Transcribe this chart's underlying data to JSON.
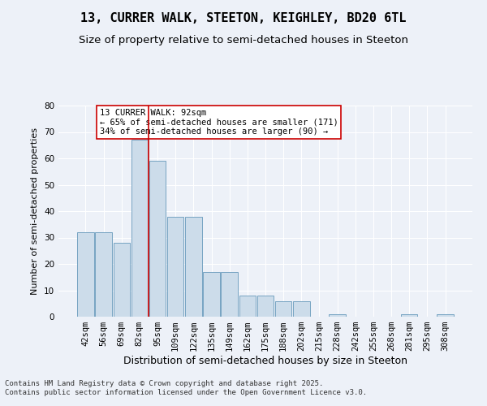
{
  "title_line1": "13, CURRER WALK, STEETON, KEIGHLEY, BD20 6TL",
  "title_line2": "Size of property relative to semi-detached houses in Steeton",
  "xlabel": "Distribution of semi-detached houses by size in Steeton",
  "ylabel": "Number of semi-detached properties",
  "categories": [
    "42sqm",
    "56sqm",
    "69sqm",
    "82sqm",
    "95sqm",
    "109sqm",
    "122sqm",
    "135sqm",
    "149sqm",
    "162sqm",
    "175sqm",
    "188sqm",
    "202sqm",
    "215sqm",
    "228sqm",
    "242sqm",
    "255sqm",
    "268sqm",
    "281sqm",
    "295sqm",
    "308sqm"
  ],
  "values": [
    32,
    32,
    28,
    67,
    59,
    38,
    38,
    17,
    17,
    8,
    8,
    6,
    6,
    0,
    1,
    0,
    0,
    0,
    1,
    0,
    1
  ],
  "bar_color": "#ccdcea",
  "bar_edge_color": "#6699bb",
  "vline_position": 3.5,
  "vline_color": "#cc0000",
  "annotation_title": "13 CURRER WALK: 92sqm",
  "annotation_line2": "← 65% of semi-detached houses are smaller (171)",
  "annotation_line3": "34% of semi-detached houses are larger (90) →",
  "annotation_box_facecolor": "#ffffff",
  "annotation_box_edgecolor": "#cc0000",
  "footer_line1": "Contains HM Land Registry data © Crown copyright and database right 2025.",
  "footer_line2": "Contains public sector information licensed under the Open Government Licence v3.0.",
  "ylim": [
    0,
    80
  ],
  "yticks": [
    0,
    10,
    20,
    30,
    40,
    50,
    60,
    70,
    80
  ],
  "bg_color": "#edf1f8",
  "grid_color": "#ffffff",
  "title1_fontsize": 11,
  "title2_fontsize": 9.5,
  "xlabel_fontsize": 9,
  "ylabel_fontsize": 8,
  "tick_fontsize": 7.5,
  "annotation_fontsize": 7.5,
  "footer_fontsize": 6.5
}
